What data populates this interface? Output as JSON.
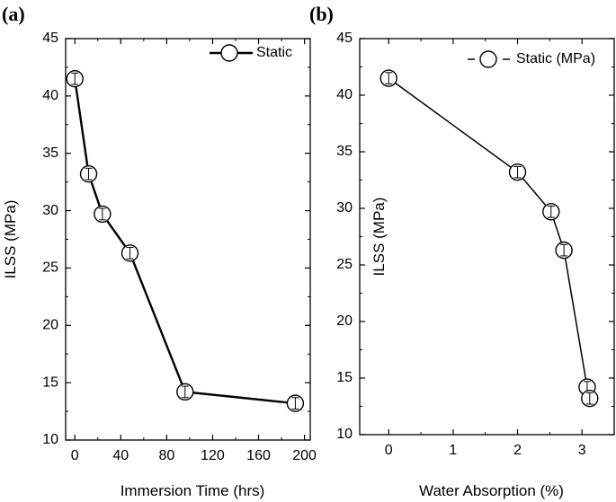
{
  "chart_data": [
    {
      "panel_label": "(a)",
      "type": "line",
      "xlabel": "Immersion Time (hrs)",
      "ylabel": "ILSS (MPa)",
      "xlim": [
        -8,
        205
      ],
      "ylim": [
        10,
        45
      ],
      "xticks": [
        0,
        40,
        80,
        120,
        160,
        200
      ],
      "yticks": [
        10,
        15,
        20,
        25,
        30,
        35,
        40,
        45
      ],
      "legend_position": "top-right",
      "grid": false,
      "series": [
        {
          "name": "Static",
          "x": [
            0,
            12,
            24,
            48,
            96,
            192
          ],
          "y": [
            41.5,
            33.2,
            29.7,
            26.3,
            14.2,
            13.2
          ],
          "error": [
            0.5,
            0.5,
            0.5,
            0.5,
            0.5,
            0.5
          ]
        }
      ]
    },
    {
      "panel_label": "(b)",
      "type": "line",
      "xlabel": "Water Absorption (%)",
      "ylabel": "ILSS (MPa)",
      "xlim": [
        -0.45,
        3.5
      ],
      "ylim": [
        10,
        45
      ],
      "xticks": [
        0,
        1,
        2,
        3
      ],
      "yticks": [
        10,
        15,
        20,
        25,
        30,
        35,
        40,
        45
      ],
      "legend_position": "top-right",
      "grid": false,
      "series": [
        {
          "name": "Static (MPa)",
          "x": [
            0,
            2.0,
            2.52,
            2.72,
            3.08,
            3.12
          ],
          "y": [
            41.5,
            33.2,
            29.7,
            26.3,
            14.2,
            13.2
          ],
          "error": [
            0.5,
            0.5,
            0.5,
            0.5,
            0.5,
            0.5
          ]
        }
      ]
    }
  ]
}
